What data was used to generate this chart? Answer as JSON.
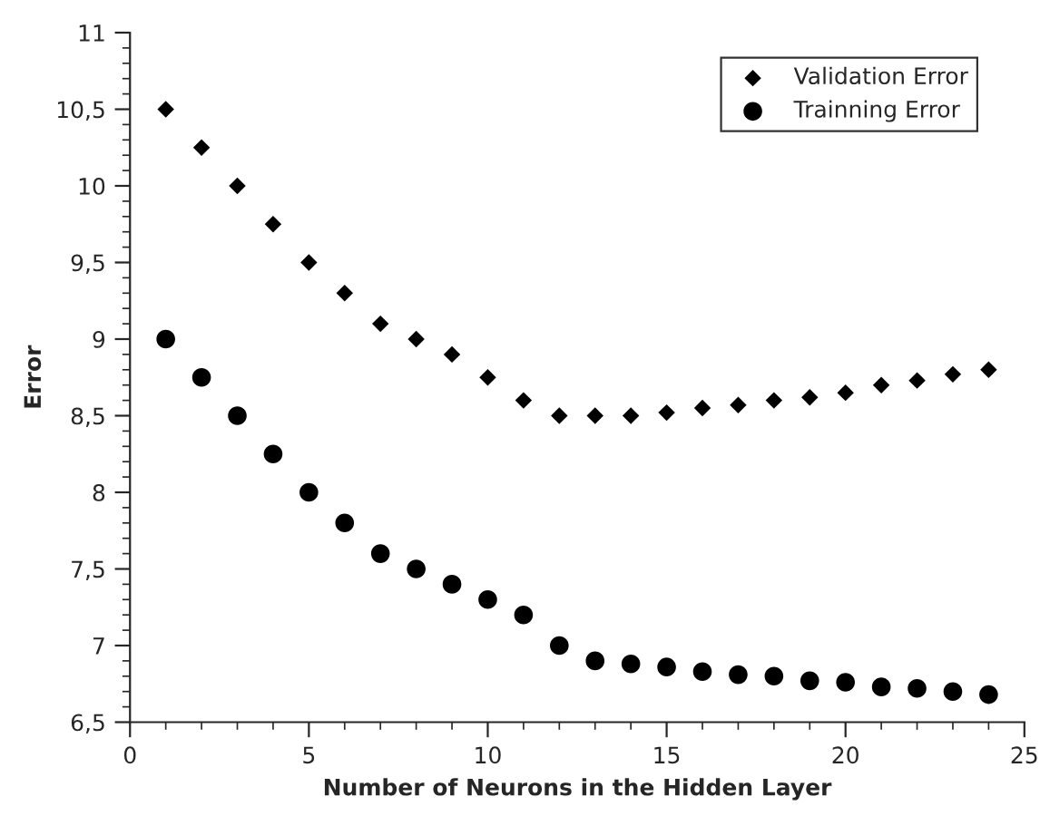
{
  "chart_data": {
    "type": "scatter",
    "xlabel": "Number of Neurons in the Hidden Layer",
    "ylabel": "Error",
    "x": [
      1,
      2,
      3,
      4,
      5,
      6,
      7,
      8,
      9,
      10,
      11,
      12,
      13,
      14,
      15,
      16,
      17,
      18,
      19,
      20,
      21,
      22,
      23,
      24
    ],
    "series": [
      {
        "name": "Validation Error",
        "color": "#000000",
        "marker": "diamond",
        "values": [
          10.5,
          10.25,
          10.0,
          9.75,
          9.5,
          9.3,
          9.1,
          9.0,
          8.9,
          8.75,
          8.6,
          8.5,
          8.5,
          8.5,
          8.52,
          8.55,
          8.57,
          8.6,
          8.62,
          8.65,
          8.7,
          8.73,
          8.77,
          8.8
        ]
      },
      {
        "name": "Trainning Error",
        "color": "#000000",
        "marker": "circle",
        "values": [
          9.0,
          8.75,
          8.5,
          8.25,
          8.0,
          7.8,
          7.6,
          7.5,
          7.4,
          7.3,
          7.2,
          7.0,
          6.9,
          6.88,
          6.86,
          6.83,
          6.81,
          6.8,
          6.77,
          6.76,
          6.73,
          6.72,
          6.7,
          6.68
        ]
      }
    ],
    "xlim": [
      0,
      25
    ],
    "xticks": [
      0,
      5,
      10,
      15,
      20,
      25
    ],
    "ylim": [
      6.5,
      11
    ],
    "yticks": [
      {
        "value": 6.5,
        "label": "6,5"
      },
      7,
      {
        "value": 7.5,
        "label": "7,5"
      },
      8,
      {
        "value": 8.5,
        "label": "8,5"
      },
      9,
      {
        "value": 9.5,
        "label": "9,5"
      },
      10,
      {
        "value": 10.5,
        "label": "10,5"
      },
      11
    ],
    "grid": false,
    "legend": "top right"
  }
}
